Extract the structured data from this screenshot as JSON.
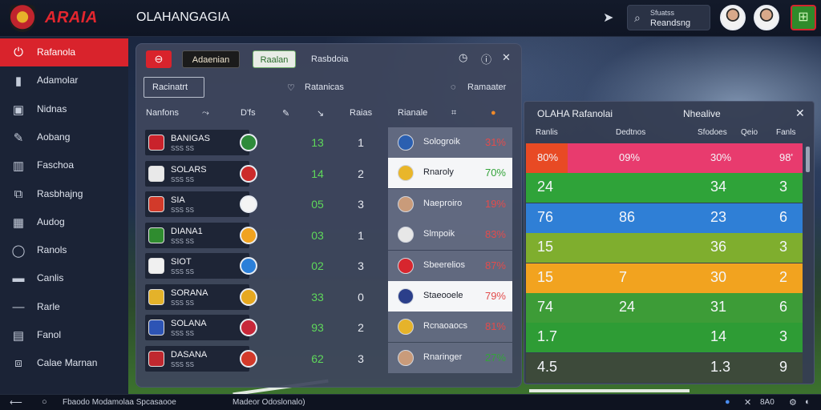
{
  "topbar": {
    "brand": "ARAIA",
    "title": "OLAHANGAGIA",
    "search_line1": "Sfuatss",
    "search_line2": "Reandsng",
    "icons": [
      "crest-icon",
      "send-icon",
      "search-icon",
      "avatar",
      "avatar",
      "strategy-icon"
    ]
  },
  "sidebar": {
    "items": [
      {
        "label": "Rafanola",
        "icon": "power-icon",
        "active": true
      },
      {
        "label": "Adamolar",
        "icon": "person-icon",
        "active": false
      },
      {
        "label": "Nidnas",
        "icon": "phone-icon",
        "active": false
      },
      {
        "label": "Aobang",
        "icon": "edit-icon",
        "active": false
      },
      {
        "label": "Faschoa",
        "icon": "book-icon",
        "active": false
      },
      {
        "label": "Rasbhajng",
        "icon": "graph-icon",
        "active": false
      },
      {
        "label": "Audog",
        "icon": "calendar-icon",
        "active": false
      },
      {
        "label": "Ranols",
        "icon": "circle-icon",
        "active": false
      },
      {
        "label": "Canlis",
        "icon": "card-icon",
        "active": false
      },
      {
        "label": "Rarle",
        "icon": "minus-icon",
        "active": false
      },
      {
        "label": "Fanol",
        "icon": "document-icon",
        "active": false
      },
      {
        "label": "Calae Marnan",
        "icon": "window-icon",
        "active": false
      }
    ]
  },
  "panel": {
    "btn_dark": "Adaenian",
    "btn_light": "Raalan",
    "btn_plain": "Rasbdoia",
    "filter": "Racinatrt",
    "label_mid": "Ratanicas",
    "label_right": "Ramaater",
    "headers": {
      "name": "Nanfons",
      "pts": "D'fs",
      "stat": "Raias",
      "right": "Rianale"
    },
    "left_rows": [
      {
        "name": "BANIGAS",
        "sub": "SSS SS",
        "score": "13",
        "num": "1",
        "crest": "#c9222b",
        "badge": "#2e8b3a"
      },
      {
        "name": "SOLARS",
        "sub": "SSS SS",
        "score": "14",
        "num": "2",
        "crest": "#e9e9e9",
        "badge": "#cc2b2b"
      },
      {
        "name": "SIA",
        "sub": "SSS SS",
        "score": "05",
        "num": "3",
        "crest": "#d23a2a",
        "badge": "#f4f4f4"
      },
      {
        "name": "DIANA1",
        "sub": "SSS SS",
        "score": "03",
        "num": "1",
        "crest": "#2f8c2f",
        "badge": "#f1a320"
      },
      {
        "name": "SIOT",
        "sub": "SSS SS",
        "score": "02",
        "num": "3",
        "crest": "#f0f0f0",
        "badge": "#2b7fd9"
      },
      {
        "name": "SORANA",
        "sub": "SSS SS",
        "score": "33",
        "num": "0",
        "crest": "#e4b22a",
        "badge": "#e6a820"
      },
      {
        "name": "SOLANA",
        "sub": "SSS SS",
        "score": "93",
        "num": "2",
        "crest": "#2d54b5",
        "badge": "#c8283a"
      },
      {
        "name": "DASANA",
        "sub": "SSS SS",
        "score": "62",
        "num": "3",
        "crest": "#c0282f",
        "badge": "#d33a2a"
      }
    ],
    "right_rows": [
      {
        "name": "Sologroik",
        "pct": "31%",
        "crest": "#2b5fb0",
        "hl": false,
        "green": false
      },
      {
        "name": "Rnaroly",
        "pct": "70%",
        "crest": "#e9b62a",
        "hl": true,
        "green": true
      },
      {
        "name": "Naeproiro",
        "pct": "19%",
        "crest": "#c99b7a",
        "hl": false,
        "green": false
      },
      {
        "name": "Slmpoik",
        "pct": "83%",
        "crest": "#e7e7e7",
        "hl": false,
        "green": false
      },
      {
        "name": "Sbeerelios",
        "pct": "87%",
        "crest": "#d7262e",
        "hl": false,
        "green": false
      },
      {
        "name": "Staeooele",
        "pct": "79%",
        "crest": "#2b3f8a",
        "hl": true,
        "green": false
      },
      {
        "name": "Rcnaoaocs",
        "pct": "81%",
        "crest": "#e6b32a",
        "hl": false,
        "green": false
      },
      {
        "name": "Rnaringer",
        "pct": "27%",
        "crest": "#c99b7a",
        "hl": false,
        "green": true
      }
    ]
  },
  "rpanel": {
    "title": "OLAHA Rafanolai",
    "title2": "Nhealive",
    "headers": [
      "Ranlis",
      "Dedtnos",
      "Sfodoes",
      "Qeio",
      "Fanls"
    ],
    "rows": [
      {
        "color": "#e83b6e",
        "left": "#e84a24",
        "cells": [
          "80%",
          "",
          "09%",
          "",
          "30%",
          "98'"
        ],
        "small": true
      },
      {
        "color": "#2fa339",
        "left": "#2fa339",
        "cells": [
          "24",
          "",
          "",
          "",
          "34",
          "3"
        ],
        "small": false
      },
      {
        "color": "#2f7fd6",
        "left": "#2f7fd6",
        "cells": [
          "76",
          "",
          "86",
          "",
          "23",
          "6"
        ],
        "small": false
      },
      {
        "color": "#7fae2e",
        "left": "#7fae2e",
        "cells": [
          "15",
          "",
          "",
          "",
          "36",
          "3"
        ],
        "small": false
      },
      {
        "color": "#f2a31f",
        "left": "#f2a31f",
        "cells": [
          "15",
          "",
          "7",
          "",
          "30",
          "2"
        ],
        "small": false
      },
      {
        "color": "#3d9c37",
        "left": "#3d9c37",
        "cells": [
          "74",
          "",
          "24",
          "",
          "31",
          "6"
        ],
        "small": false
      },
      {
        "color": "#2e9c35",
        "left": "#2e9c35",
        "cells": [
          "1.7",
          "",
          "",
          "",
          "14",
          "3"
        ],
        "small": false
      },
      {
        "color": "#3d4a3a",
        "left": "#3d4a3a",
        "cells": [
          "4.5",
          "",
          "",
          "",
          "1.3",
          "9"
        ],
        "small": false
      }
    ]
  },
  "bottombar": {
    "text1": "Fbaodo Modamolaa Spcasaooe",
    "text2": "Madeor Odoslonalo)",
    "right_text": "8A0"
  }
}
